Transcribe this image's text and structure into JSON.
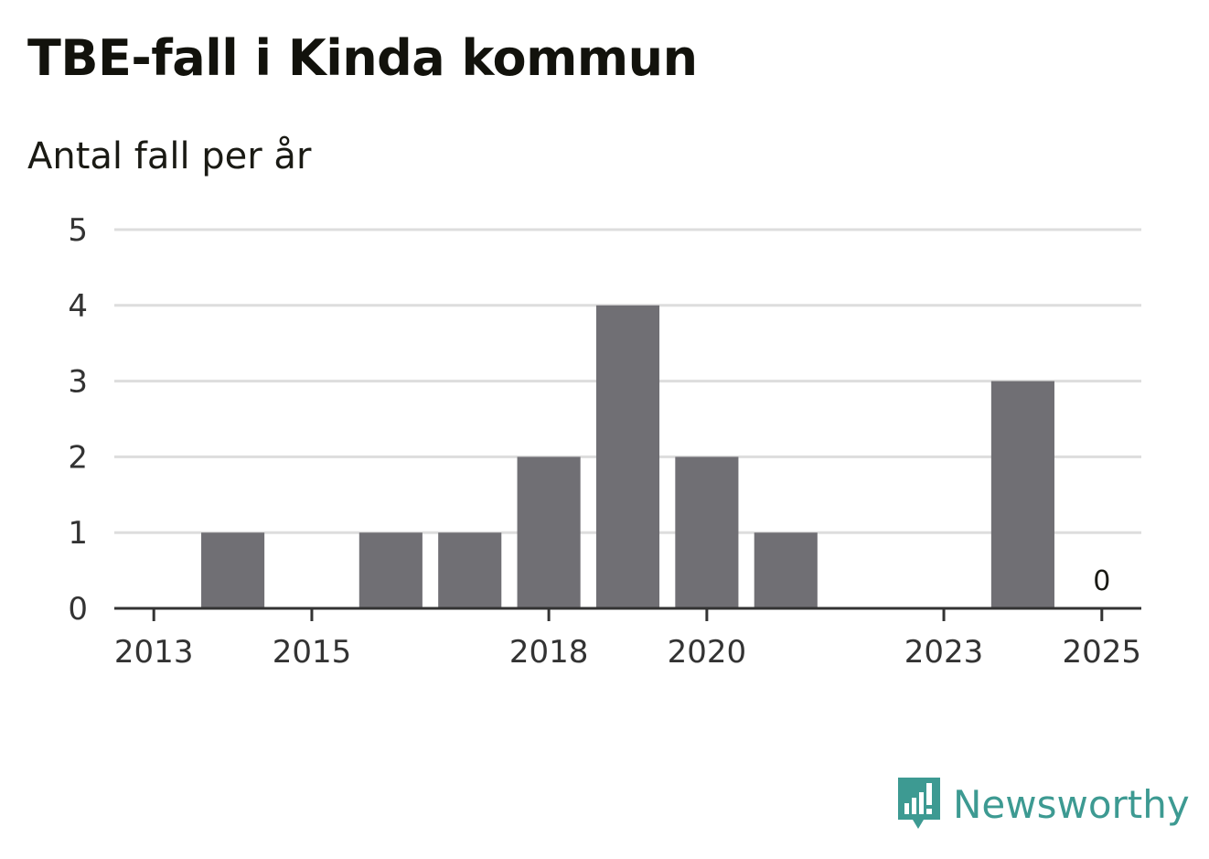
{
  "header": {
    "title": "TBE-fall i Kinda kommun",
    "subtitle": "Antal fall per år"
  },
  "brand": {
    "name": "Newsworthy",
    "color": "#3d9a92",
    "icon": "bar-chart-speech-bubble-icon"
  },
  "colors": {
    "bar": "#706f74",
    "grid": "#dddddd",
    "axis": "#333333"
  },
  "chart_data": {
    "type": "bar",
    "title": "TBE-fall i Kinda kommun",
    "subtitle": "Antal fall per år",
    "xlabel": "",
    "ylabel": "",
    "categories": [
      "2013",
      "2014",
      "2015",
      "2016",
      "2017",
      "2018",
      "2019",
      "2020",
      "2021",
      "2022",
      "2023",
      "2024",
      "2025"
    ],
    "values": [
      0,
      1,
      0,
      1,
      1,
      2,
      4,
      2,
      1,
      0,
      0,
      3,
      0
    ],
    "x_tick_labels": [
      "2013",
      "2015",
      "2018",
      "2020",
      "2023",
      "2025"
    ],
    "y_ticks": [
      "0",
      "1",
      "2",
      "3",
      "4",
      "5"
    ],
    "ylim": [
      0,
      5
    ],
    "grid": true,
    "legend": "none",
    "data_labels": [
      {
        "category": "2025",
        "text": "0"
      }
    ]
  }
}
